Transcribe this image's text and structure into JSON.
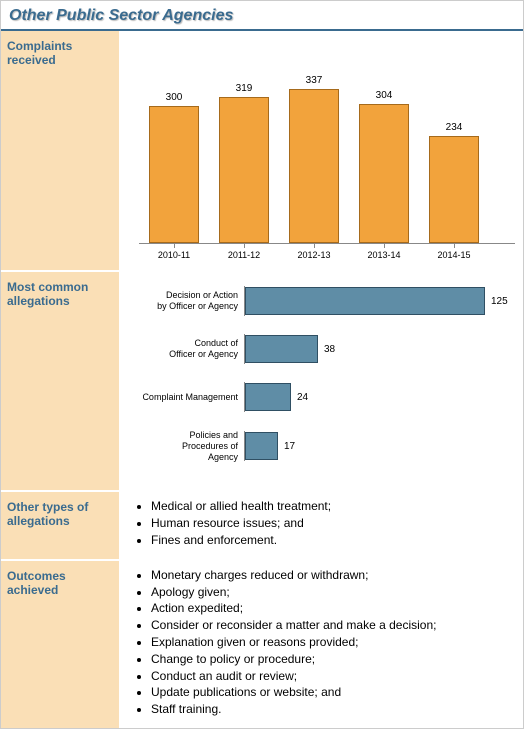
{
  "title": "Other Public Sector Agencies",
  "sections": {
    "complaints": {
      "label": "Complaints received",
      "chart": {
        "type": "bar",
        "categories": [
          "2010-11",
          "2011-12",
          "2012-13",
          "2013-14",
          "2014-15"
        ],
        "values": [
          300,
          319,
          337,
          304,
          234
        ],
        "ylim": [
          0,
          350
        ],
        "bar_color": "#f2a33c",
        "bar_border": "#a66a1b",
        "label_fontsize": 10,
        "xtick_fontsize": 9
      }
    },
    "allegations": {
      "label": "Most common allegations",
      "chart": {
        "type": "hbar",
        "items": [
          {
            "label": "Decision or Action by Officer or Agency",
            "value": 125
          },
          {
            "label": "Conduct of Officer or Agency",
            "value": 38
          },
          {
            "label": "Complaint Management",
            "value": 24
          },
          {
            "label": "Policies and Procedures of Agency",
            "value": 17
          }
        ],
        "xlim": [
          0,
          130
        ],
        "bar_color": "#5f8da6",
        "bar_border": "#2f4f63",
        "label_fontsize": 9
      }
    },
    "other_types": {
      "label": "Other types of allegations",
      "items": [
        "Medical or allied health treatment;",
        "Human resource issues; and",
        "Fines and enforcement."
      ]
    },
    "outcomes": {
      "label": "Outcomes achieved",
      "items": [
        "Monetary charges reduced or withdrawn;",
        "Apology given;",
        "Action expedited;",
        "Consider or reconsider a matter and make a decision;",
        "Explanation given or reasons provided;",
        "Change to policy or procedure;",
        "Conduct an audit or review;",
        "Update publications or website; and",
        "Staff training."
      ]
    }
  },
  "colors": {
    "title_text": "#3a6b8f",
    "title_rule": "#3a6b8f",
    "label_bg": "#fadfb6",
    "label_text": "#3a6b8f"
  }
}
